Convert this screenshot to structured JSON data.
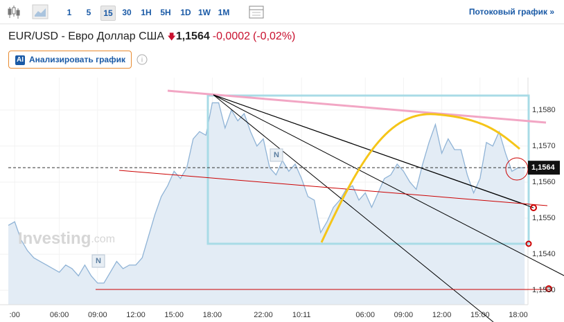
{
  "toolbar": {
    "intervals": [
      "1",
      "5",
      "15",
      "30",
      "1H",
      "5H",
      "1D",
      "1W",
      "1M"
    ],
    "stream_link": "Потоковый график »"
  },
  "header": {
    "title": "EUR/USD - Евро Доллар США",
    "price": "1,1564",
    "change": "-0,0002",
    "change_percent": "(-0,02%)",
    "ai_badge": "AI",
    "ai_button": "Анализировать график"
  },
  "watermark": {
    "brand": "Investing",
    "suffix": ".com"
  },
  "news_markers": [
    "N",
    "N"
  ],
  "chart_data": {
    "type": "area",
    "color": "#8fb3d6",
    "fill": "#e3ecf5",
    "grid": true,
    "categories": [
      null,
      ":00",
      null,
      null,
      null,
      null,
      null,
      null,
      "06:00",
      null,
      null,
      null,
      null,
      null,
      "09:00",
      null,
      null,
      null,
      null,
      null,
      "12:00",
      null,
      null,
      null,
      null,
      null,
      "15:00",
      null,
      null,
      null,
      null,
      null,
      "18:00",
      null,
      null,
      null,
      null,
      null,
      null,
      null,
      "22:00",
      null,
      null,
      null,
      null,
      null,
      "10:11",
      null,
      null,
      null,
      null,
      null,
      null,
      null,
      null,
      null,
      "06:00",
      null,
      null,
      null,
      null,
      null,
      "09:00",
      null,
      null,
      null,
      null,
      null,
      "12:00",
      null,
      null,
      null,
      null,
      null,
      "15:00",
      null,
      null,
      null,
      null,
      null,
      "18:00",
      null
    ],
    "values": [
      1.1548,
      1.1549,
      1.1544,
      1.1541,
      1.1539,
      1.1538,
      1.1537,
      1.1536,
      1.1535,
      1.1537,
      1.1536,
      1.1534,
      1.1537,
      1.1534,
      1.1532,
      1.1532,
      1.1535,
      1.1538,
      1.1536,
      1.1537,
      1.1537,
      1.1539,
      1.1545,
      1.1551,
      1.1556,
      1.1559,
      1.1563,
      1.1561,
      1.1564,
      1.1572,
      1.1574,
      1.1573,
      1.1582,
      1.1582,
      1.1575,
      1.158,
      1.1577,
      1.1579,
      1.1574,
      1.157,
      1.1572,
      1.1564,
      1.1562,
      1.1566,
      1.1563,
      1.1565,
      1.1561,
      1.1556,
      1.1555,
      1.1546,
      1.1549,
      1.1553,
      1.1555,
      1.1558,
      1.1559,
      1.1555,
      1.1557,
      1.1553,
      1.1557,
      1.1561,
      1.1562,
      1.1565,
      1.1563,
      1.156,
      1.1558,
      1.1565,
      1.1571,
      1.1576,
      1.1568,
      1.1572,
      1.1569,
      1.1569,
      1.1562,
      1.1557,
      1.1561,
      1.1571,
      1.157,
      1.1574,
      1.1568,
      1.1563,
      1.1564,
      1.1564
    ],
    "ylim": [
      1.1526,
      1.1589
    ],
    "yticks": [
      {
        "value": 1.153,
        "label": "1,1530"
      },
      {
        "value": 1.154,
        "label": "1,1540"
      },
      {
        "value": 1.155,
        "label": "1,1550"
      },
      {
        "value": 1.156,
        "label": "1,1560"
      },
      {
        "value": 1.157,
        "label": "1,1570"
      },
      {
        "value": 1.158,
        "label": "1,1580"
      }
    ],
    "current_price": {
      "value": 1.1564,
      "label": "1,1564"
    }
  }
}
